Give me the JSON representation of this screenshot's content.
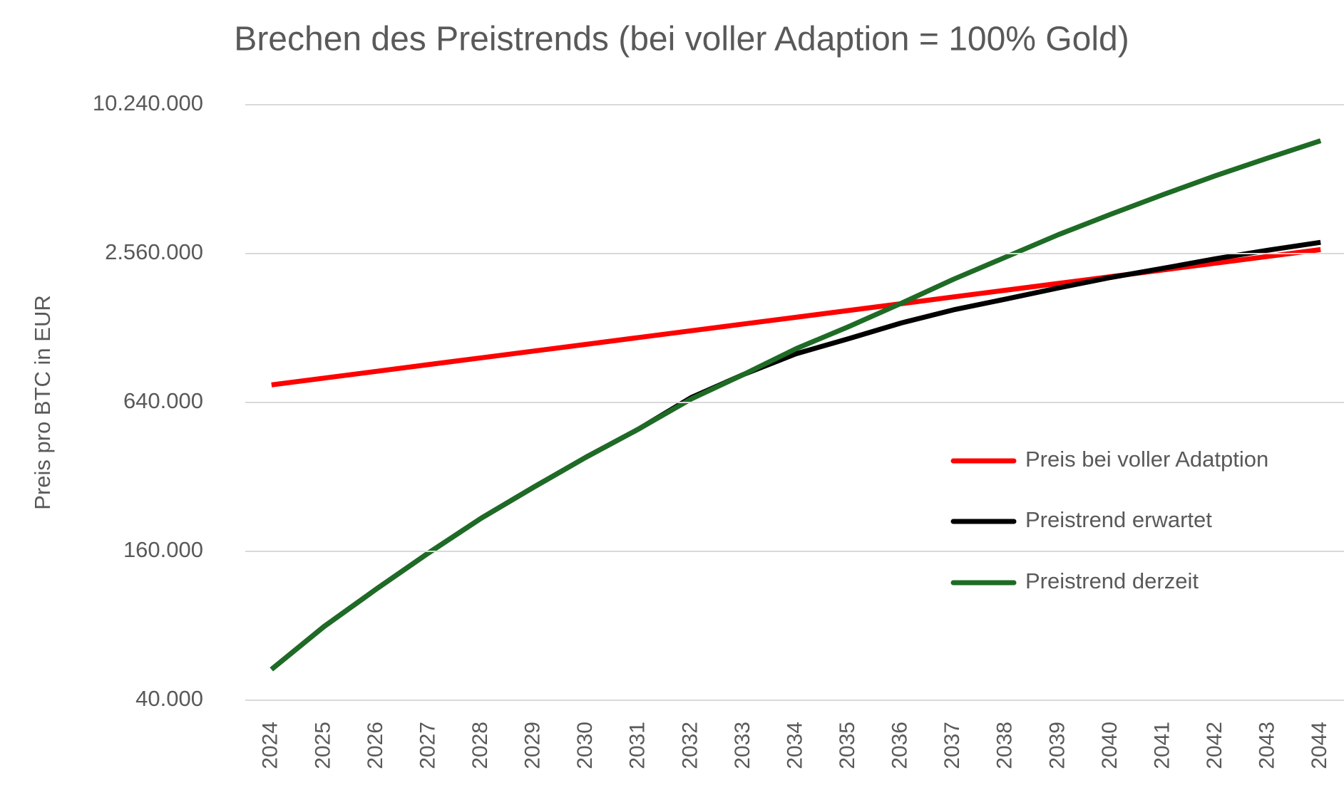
{
  "chart_data": {
    "type": "line",
    "title": "Brechen des Preistrends (bei voller Adaption = 100% Gold)",
    "y_label": "Preis pro BTC in EUR",
    "x": [
      2024,
      2025,
      2026,
      2027,
      2028,
      2029,
      2030,
      2031,
      2032,
      2033,
      2034,
      2035,
      2036,
      2037,
      2038,
      2039,
      2040,
      2041,
      2042,
      2043,
      2044
    ],
    "xlim": [
      2023.5,
      2044.5
    ],
    "series": [
      {
        "name": "Preis bei voller Adatption",
        "color": "#ff0000",
        "values": [
          754000,
          803000,
          855000,
          911000,
          970000,
          1033000,
          1100000,
          1172000,
          1248000,
          1329000,
          1415000,
          1507000,
          1605000,
          1710000,
          1821000,
          1939000,
          2065000,
          2199000,
          2342000,
          2494000,
          2657000
        ]
      },
      {
        "name": "Preistrend erwartet",
        "color": "#000000",
        "values": [
          53300,
          79400,
          112700,
          158000,
          218000,
          291000,
          385000,
          500000,
          670000,
          831000,
          1007000,
          1159000,
          1341000,
          1516000,
          1677000,
          1859000,
          2050000,
          2233000,
          2440000,
          2643000,
          2843000
        ]
      },
      {
        "name": "Preistrend derzeit",
        "color": "#1e6b25",
        "values": [
          53300,
          79400,
          112700,
          158000,
          218000,
          291000,
          385000,
          500000,
          661000,
          831000,
          1056000,
          1296000,
          1610000,
          2015000,
          2480000,
          3053000,
          3692000,
          4436000,
          5290000,
          6240000,
          7320000
        ]
      }
    ],
    "ylim": [
      40000,
      10240000
    ],
    "log_y": true,
    "yticks": [
      {
        "value": 40000,
        "label": "40.000"
      },
      {
        "value": 160000,
        "label": "160.000"
      },
      {
        "value": 640000,
        "label": "640.000"
      },
      {
        "value": 2560000,
        "label": "2.560.000"
      },
      {
        "value": 10240000,
        "label": "10.240.000"
      }
    ],
    "grid": true,
    "legend": "right"
  }
}
